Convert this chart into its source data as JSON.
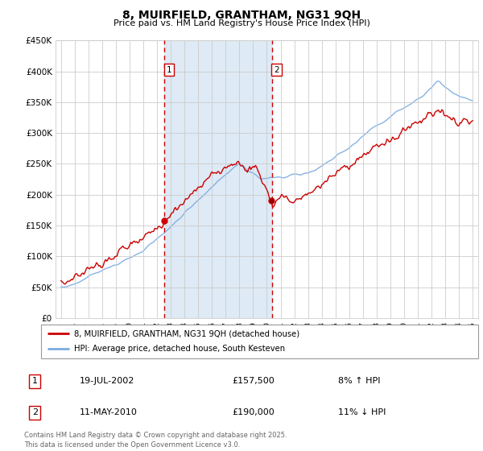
{
  "title": "8, MUIRFIELD, GRANTHAM, NG31 9QH",
  "subtitle": "Price paid vs. HM Land Registry's House Price Index (HPI)",
  "legend_line1": "8, MUIRFIELD, GRANTHAM, NG31 9QH (detached house)",
  "legend_line2": "HPI: Average price, detached house, South Kesteven",
  "marker1_date": "19-JUL-2002",
  "marker1_price": 157500,
  "marker1_hpi": "8% ↑ HPI",
  "marker1_x": 2002.54,
  "marker2_date": "11-MAY-2010",
  "marker2_price": 190000,
  "marker2_hpi": "11% ↓ HPI",
  "marker2_x": 2010.36,
  "shade_start": 2002.54,
  "shade_end": 2010.36,
  "footer": "Contains HM Land Registry data © Crown copyright and database right 2025.\nThis data is licensed under the Open Government Licence v3.0.",
  "red_color": "#cc0000",
  "blue_color": "#7aabe0",
  "shade_color": "#deeaf5",
  "bg_color": "#ffffff",
  "grid_color": "#cccccc",
  "ylim_min": 0,
  "ylim_max": 450000,
  "xlim_min": 1994.6,
  "xlim_max": 2025.4,
  "yticks": [
    0,
    50000,
    100000,
    150000,
    200000,
    250000,
    300000,
    350000,
    400000,
    450000
  ],
  "ytick_labels": [
    "£0",
    "£50K",
    "£100K",
    "£150K",
    "£200K",
    "£250K",
    "£300K",
    "£350K",
    "£400K",
    "£450K"
  ],
  "xtick_years": [
    1995,
    1996,
    1997,
    1998,
    1999,
    2000,
    2001,
    2002,
    2003,
    2004,
    2005,
    2006,
    2007,
    2008,
    2009,
    2010,
    2011,
    2012,
    2013,
    2014,
    2015,
    2016,
    2017,
    2018,
    2019,
    2020,
    2021,
    2022,
    2023,
    2024,
    2025
  ]
}
